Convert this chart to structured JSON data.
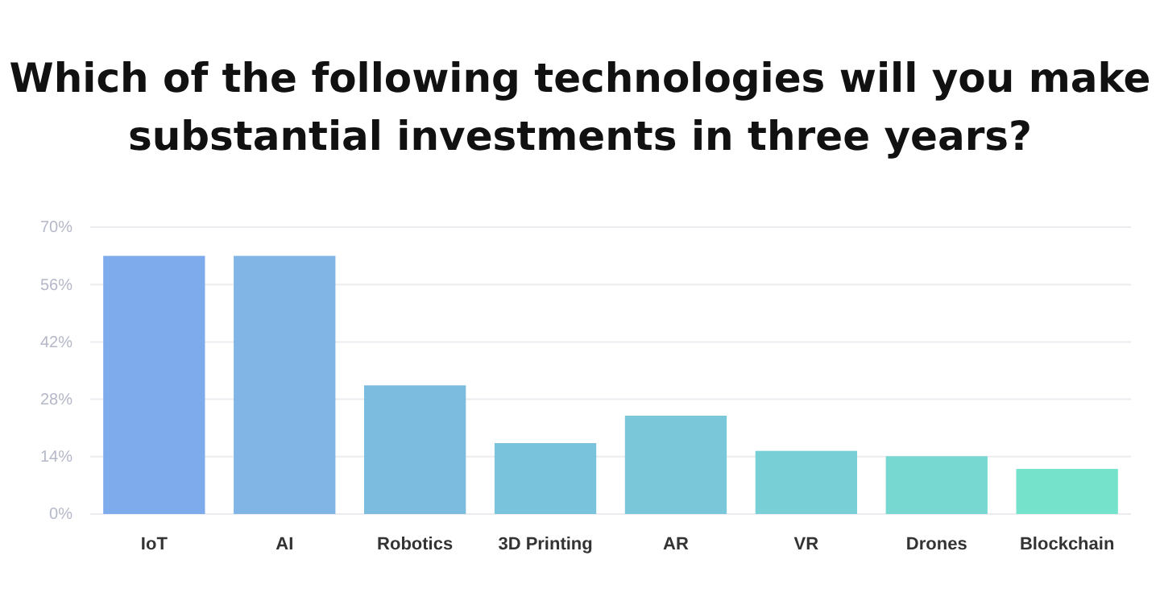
{
  "chart_data": {
    "type": "bar",
    "title": "Which of the following technologies will you make substantial investments in three years?",
    "categories": [
      "IoT",
      "AI",
      "Robotics",
      "3D Printing",
      "AR",
      "VR",
      "Drones",
      "Blockchain"
    ],
    "values": [
      63,
      63,
      31.4,
      17.3,
      24,
      15.4,
      14.1,
      11
    ],
    "colors": [
      "#7eabec",
      "#80b5e6",
      "#7cbcdf",
      "#7ac3dc",
      "#79c7d9",
      "#78cfd6",
      "#77d8d1",
      "#75e2cc"
    ],
    "ylim": [
      0,
      70
    ],
    "yticks": [
      {
        "value": 0,
        "label": "0%"
      },
      {
        "value": 14,
        "label": "14%"
      },
      {
        "value": 28,
        "label": "28%"
      },
      {
        "value": 42,
        "label": "42%"
      },
      {
        "value": 56,
        "label": "56%"
      },
      {
        "value": 70,
        "label": "70%"
      }
    ],
    "grid": "y"
  }
}
